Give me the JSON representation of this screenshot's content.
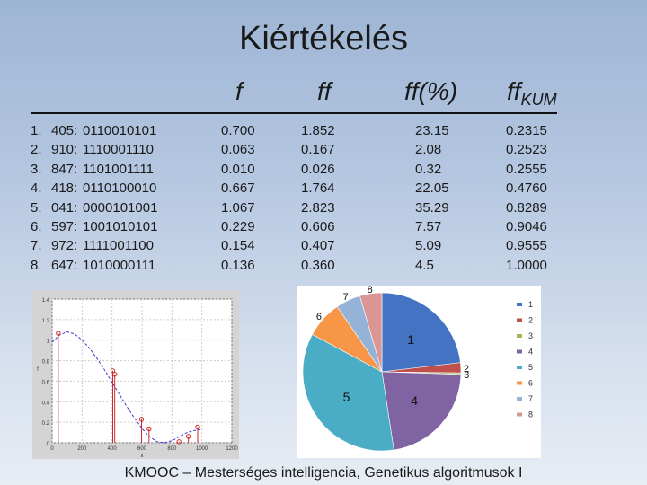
{
  "title": "Kiértékelés",
  "headers": {
    "f": "f",
    "ff": "ff",
    "ffp": "ff(%)",
    "ffk_base": "ff",
    "ffk_sub": "KUM"
  },
  "rows": [
    {
      "n": "1.",
      "x": "405:",
      "bits": "0110010101",
      "f": "0.700",
      "ff": "1.852",
      "ffp": "23.15",
      "ffk": "0.2315"
    },
    {
      "n": "2.",
      "x": "910:",
      "bits": "1110001110",
      "f": "0.063",
      "ff": "0.167",
      "ffp": "2.08",
      "ffk": "0.2523"
    },
    {
      "n": "3.",
      "x": "847:",
      "bits": "1101001111",
      "f": "0.010",
      "ff": "0.026",
      "ffp": "0.32",
      "ffk": "0.2555"
    },
    {
      "n": "4.",
      "x": "418:",
      "bits": "0110100010",
      "f": "0.667",
      "ff": "1.764",
      "ffp": "22.05",
      "ffk": "0.4760"
    },
    {
      "n": "5.",
      "x": "041:",
      "bits": "0000101001",
      "f": "1.067",
      "ff": "2.823",
      "ffp": "35.29",
      "ffk": "0.8289"
    },
    {
      "n": "6.",
      "x": "597:",
      "bits": "1001010101",
      "f": "0.229",
      "ff": "0.606",
      "ffp": "7.57",
      "ffk": "0.9046"
    },
    {
      "n": "7.",
      "x": "972:",
      "bits": "1111001100",
      "f": "0.154",
      "ff": "0.407",
      "ffp": "5.09",
      "ffk": "0.9555"
    },
    {
      "n": "8.",
      "x": "647:",
      "bits": "1010000111",
      "f": "0.136",
      "ff": "0.360",
      "ffp": "4.5",
      "ffk": "1.0000"
    }
  ],
  "chart_data": [
    {
      "type": "line",
      "title": "",
      "xlabel": "x",
      "ylabel": "f",
      "xlim": [
        0,
        1200
      ],
      "ylim": [
        0,
        1.4
      ],
      "xticks": [
        "0",
        "200",
        "400",
        "600",
        "800",
        "1000",
        "1200"
      ],
      "yticks": [
        "0",
        "0.2",
        "0.4",
        "0.6",
        "0.8",
        "1",
        "1.2",
        "1.4"
      ],
      "curve": {
        "x": [
          0,
          50,
          100,
          150,
          200,
          250,
          300,
          350,
          400,
          450,
          500,
          550,
          600,
          650,
          700,
          750,
          800,
          850,
          900,
          950,
          1000
        ],
        "y": [
          0.98,
          1.05,
          1.08,
          1.06,
          1.0,
          0.92,
          0.82,
          0.71,
          0.59,
          0.47,
          0.35,
          0.24,
          0.14,
          0.06,
          0.01,
          0.0,
          0.02,
          0.06,
          0.1,
          0.12,
          0.13
        ]
      },
      "points": {
        "x": [
          41,
          405,
          418,
          597,
          647,
          847,
          910,
          972
        ],
        "y": [
          1.067,
          0.7,
          0.667,
          0.229,
          0.136,
          0.01,
          0.063,
          0.154
        ]
      },
      "colors": {
        "curve": "#3a3ad0",
        "points": "#d12a2a"
      }
    },
    {
      "type": "pie",
      "title": "",
      "categories": [
        "1",
        "2",
        "3",
        "4",
        "5",
        "6",
        "7",
        "8"
      ],
      "values": [
        23.15,
        2.08,
        0.32,
        22.05,
        35.29,
        7.57,
        5.09,
        4.5
      ],
      "colors": [
        "#4473c4",
        "#c0504d",
        "#9bbb59",
        "#7f63a2",
        "#4bacc6",
        "#f79646",
        "#95b3d7",
        "#d99694"
      ],
      "slice_labels": [
        "1",
        "2",
        "3",
        "4",
        "5",
        "6",
        "7",
        "8"
      ],
      "legend": "right"
    }
  ],
  "footer": "KMOOC – Mesterséges intelligencia, Genetikus algoritmusok I"
}
